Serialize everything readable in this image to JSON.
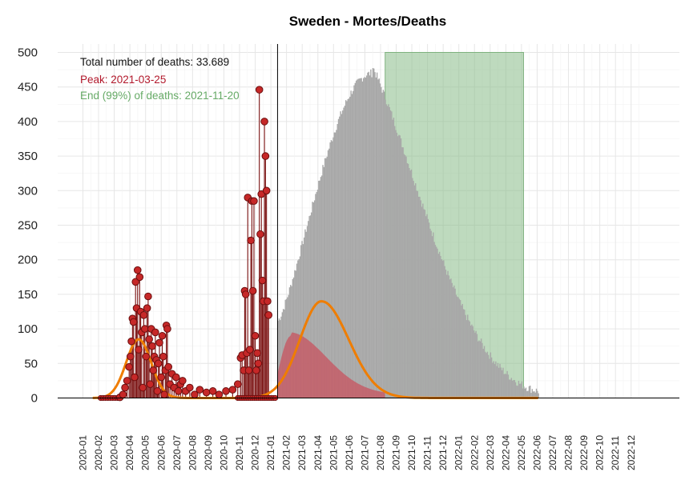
{
  "chart_data": {
    "type": "bar",
    "title": "Sweden - Mortes/Deaths",
    "xlabel": "",
    "ylabel": "",
    "ylim": [
      0,
      500
    ],
    "y_ticks": [
      "0",
      "50",
      "100",
      "150",
      "200",
      "250",
      "300",
      "350",
      "400",
      "450",
      "500"
    ],
    "x_ticks": [
      "2020-01",
      "2020-02",
      "2020-03",
      "2020-04",
      "2020-05",
      "2020-06",
      "2020-07",
      "2020-08",
      "2020-09",
      "2020-10",
      "2020-11",
      "2020-12",
      "2021-01",
      "2021-02",
      "2021-03",
      "2021-04",
      "2021-05",
      "2021-06",
      "2021-07",
      "2021-08",
      "2021-09",
      "2021-10",
      "2021-11",
      "2021-12",
      "2022-01",
      "2022-02",
      "2022-03",
      "2022-04",
      "2022-05",
      "2022-06",
      "2022-07",
      "2022-08",
      "2022-09",
      "2022-10",
      "2022-11",
      "2022-12"
    ],
    "today_marker": "2021-01-14",
    "annotations": {
      "total": "Total number of deaths: 33.689",
      "peak": "Peak: 2021-03-25",
      "end": "End (99%) of deaths: 2021-11-20"
    },
    "end_region": {
      "from": "2021-08-10",
      "to": "2022-05-05",
      "height": 500
    },
    "observed_points": [
      {
        "x": "2020-03-12",
        "y": 1
      },
      {
        "x": "2020-03-18",
        "y": 5
      },
      {
        "x": "2020-03-22",
        "y": 15
      },
      {
        "x": "2020-03-26",
        "y": 25
      },
      {
        "x": "2020-03-30",
        "y": 45
      },
      {
        "x": "2020-04-02",
        "y": 60
      },
      {
        "x": "2020-04-04",
        "y": 82
      },
      {
        "x": "2020-04-06",
        "y": 115
      },
      {
        "x": "2020-04-08",
        "y": 110
      },
      {
        "x": "2020-04-10",
        "y": 30
      },
      {
        "x": "2020-04-12",
        "y": 168
      },
      {
        "x": "2020-04-14",
        "y": 130
      },
      {
        "x": "2020-04-16",
        "y": 185
      },
      {
        "x": "2020-04-18",
        "y": 70
      },
      {
        "x": "2020-04-20",
        "y": 175
      },
      {
        "x": "2020-04-22",
        "y": 125
      },
      {
        "x": "2020-04-24",
        "y": 95
      },
      {
        "x": "2020-04-26",
        "y": 15
      },
      {
        "x": "2020-04-28",
        "y": 120
      },
      {
        "x": "2020-04-30",
        "y": 100
      },
      {
        "x": "2020-05-02",
        "y": 60
      },
      {
        "x": "2020-05-04",
        "y": 130
      },
      {
        "x": "2020-05-06",
        "y": 147
      },
      {
        "x": "2020-05-08",
        "y": 85
      },
      {
        "x": "2020-05-10",
        "y": 20
      },
      {
        "x": "2020-05-12",
        "y": 100
      },
      {
        "x": "2020-05-14",
        "y": 75
      },
      {
        "x": "2020-05-16",
        "y": 40
      },
      {
        "x": "2020-05-18",
        "y": 60
      },
      {
        "x": "2020-05-20",
        "y": 95
      },
      {
        "x": "2020-05-22",
        "y": 55
      },
      {
        "x": "2020-05-24",
        "y": 10
      },
      {
        "x": "2020-05-26",
        "y": 50
      },
      {
        "x": "2020-05-28",
        "y": 80
      },
      {
        "x": "2020-06-01",
        "y": 30
      },
      {
        "x": "2020-06-03",
        "y": 90
      },
      {
        "x": "2020-06-05",
        "y": 60
      },
      {
        "x": "2020-06-07",
        "y": 5
      },
      {
        "x": "2020-06-09",
        "y": 40
      },
      {
        "x": "2020-06-11",
        "y": 105
      },
      {
        "x": "2020-06-13",
        "y": 100
      },
      {
        "x": "2020-06-15",
        "y": 45
      },
      {
        "x": "2020-06-18",
        "y": 20
      },
      {
        "x": "2020-06-22",
        "y": 35
      },
      {
        "x": "2020-06-26",
        "y": 15
      },
      {
        "x": "2020-06-30",
        "y": 30
      },
      {
        "x": "2020-07-04",
        "y": 10
      },
      {
        "x": "2020-07-08",
        "y": 20
      },
      {
        "x": "2020-07-12",
        "y": 25
      },
      {
        "x": "2020-07-18",
        "y": 10
      },
      {
        "x": "2020-07-26",
        "y": 15
      },
      {
        "x": "2020-08-05",
        "y": 5
      },
      {
        "x": "2020-08-15",
        "y": 12
      },
      {
        "x": "2020-08-28",
        "y": 8
      },
      {
        "x": "2020-09-10",
        "y": 10
      },
      {
        "x": "2020-09-22",
        "y": 5
      },
      {
        "x": "2020-10-05",
        "y": 10
      },
      {
        "x": "2020-10-18",
        "y": 12
      },
      {
        "x": "2020-10-28",
        "y": 20
      },
      {
        "x": "2020-11-03",
        "y": 58
      },
      {
        "x": "2020-11-06",
        "y": 62
      },
      {
        "x": "2020-11-09",
        "y": 40
      },
      {
        "x": "2020-11-11",
        "y": 155
      },
      {
        "x": "2020-11-13",
        "y": 150
      },
      {
        "x": "2020-11-15",
        "y": 65
      },
      {
        "x": "2020-11-17",
        "y": 290
      },
      {
        "x": "2020-11-19",
        "y": 40
      },
      {
        "x": "2020-11-21",
        "y": 70
      },
      {
        "x": "2020-11-23",
        "y": 228
      },
      {
        "x": "2020-11-25",
        "y": 285
      },
      {
        "x": "2020-11-27",
        "y": 155
      },
      {
        "x": "2020-11-29",
        "y": 285
      },
      {
        "x": "2020-12-01",
        "y": 90
      },
      {
        "x": "2020-12-03",
        "y": 40
      },
      {
        "x": "2020-12-05",
        "y": 65
      },
      {
        "x": "2020-12-07",
        "y": 50
      },
      {
        "x": "2020-12-09",
        "y": 446
      },
      {
        "x": "2020-12-11",
        "y": 237
      },
      {
        "x": "2020-12-13",
        "y": 295
      },
      {
        "x": "2020-12-15",
        "y": 170
      },
      {
        "x": "2020-12-17",
        "y": 140
      },
      {
        "x": "2020-12-19",
        "y": 400
      },
      {
        "x": "2020-12-21",
        "y": 350
      },
      {
        "x": "2020-12-23",
        "y": 300
      },
      {
        "x": "2020-12-25",
        "y": 140
      },
      {
        "x": "2020-12-27",
        "y": 120
      }
    ],
    "series": [
      {
        "name": "Projected deaths (gray)",
        "description": "Logistic projection peaking around 2021-07 near 470/day, ending near 10/day by 2022-06."
      },
      {
        "name": "Upper projection (pink)",
        "description": "Pink band peaking near 90 around 2021-02."
      },
      {
        "name": "Fitted curve (orange)",
        "description": "Orange fitted curve: first wave peak ~85 around 2020-04; second wave peak ~140 around 2021-04."
      }
    ],
    "colors": {
      "points": "#c62828",
      "stems": "#7a1010",
      "gray_area": "#a8a8a8",
      "pink_area": "#c8535f",
      "orange_curve": "#ef7d00",
      "green_region": "#88bb88",
      "peak_text": "#b2182b",
      "end_text": "#66aa66"
    }
  }
}
